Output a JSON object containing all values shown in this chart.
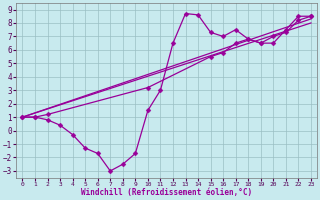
{
  "xlabel": "Windchill (Refroidissement éolien,°C)",
  "bg_color": "#c8eaee",
  "line_color": "#990099",
  "grid_color": "#9bbfc4",
  "xlim": [
    -0.5,
    23.5
  ],
  "ylim": [
    -3.5,
    9.5
  ],
  "xticks": [
    0,
    1,
    2,
    3,
    4,
    5,
    6,
    7,
    8,
    9,
    10,
    11,
    12,
    13,
    14,
    15,
    16,
    17,
    18,
    19,
    20,
    21,
    22,
    23
  ],
  "yticks": [
    -3,
    -2,
    -1,
    0,
    1,
    2,
    3,
    4,
    5,
    6,
    7,
    8,
    9
  ],
  "line1_x": [
    0,
    1,
    2,
    3,
    4,
    5,
    6,
    7,
    8,
    9,
    10,
    11,
    12,
    13,
    14,
    15,
    16,
    17,
    18,
    19,
    20,
    21,
    22,
    23
  ],
  "line1_y": [
    1.0,
    1.0,
    0.8,
    0.4,
    -0.3,
    -1.3,
    -1.7,
    -3.0,
    -2.5,
    -1.7,
    1.5,
    3.0,
    6.5,
    8.7,
    8.6,
    7.3,
    7.0,
    7.5,
    6.8,
    6.5,
    6.5,
    7.5,
    8.5,
    8.5
  ],
  "line2_x": [
    0,
    1,
    2,
    10,
    15,
    16,
    17,
    18,
    19,
    20,
    21,
    22,
    23
  ],
  "line2_y": [
    1.0,
    1.0,
    1.2,
    3.2,
    5.5,
    5.8,
    6.5,
    6.8,
    6.5,
    7.0,
    7.3,
    8.2,
    8.5
  ],
  "line3_x": [
    0,
    23
  ],
  "line3_y": [
    1.0,
    8.3
  ],
  "line4_x": [
    0,
    23
  ],
  "line4_y": [
    1.0,
    8.0
  ],
  "markersize": 2.5,
  "linewidth": 0.9
}
